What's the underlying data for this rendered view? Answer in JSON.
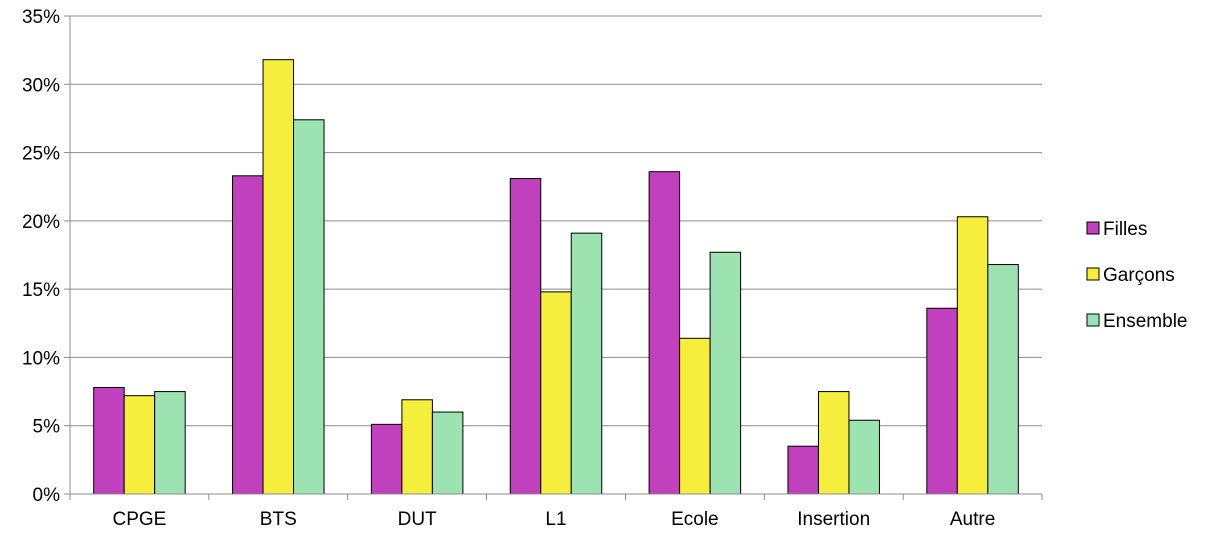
{
  "chart_data": {
    "type": "bar",
    "categories": [
      "CPGE",
      "BTS",
      "DUT",
      "L1",
      "Ecole",
      "Insertion",
      "Autre"
    ],
    "series": [
      {
        "name": "Filles",
        "values": [
          7.8,
          23.3,
          5.1,
          23.1,
          23.6,
          3.5,
          13.6
        ]
      },
      {
        "name": "Garçons",
        "values": [
          7.2,
          31.8,
          6.9,
          14.8,
          11.4,
          7.5,
          20.3
        ]
      },
      {
        "name": "Ensemble",
        "values": [
          7.5,
          27.4,
          6.0,
          19.1,
          17.7,
          5.4,
          16.8
        ]
      }
    ],
    "ylim": [
      0,
      35
    ],
    "yticks": [
      "0%",
      "5%",
      "10%",
      "15%",
      "20%",
      "25%",
      "30%",
      "35%"
    ],
    "grid": true,
    "legend_position": "right",
    "colors": {
      "Filles": "#c040be",
      "Garçons": "#f5ee3c",
      "Ensemble": "#9de3b1",
      "gridline": "#8c8c8c",
      "axis": "#8c8c8c",
      "bar_border": "#000000"
    }
  }
}
